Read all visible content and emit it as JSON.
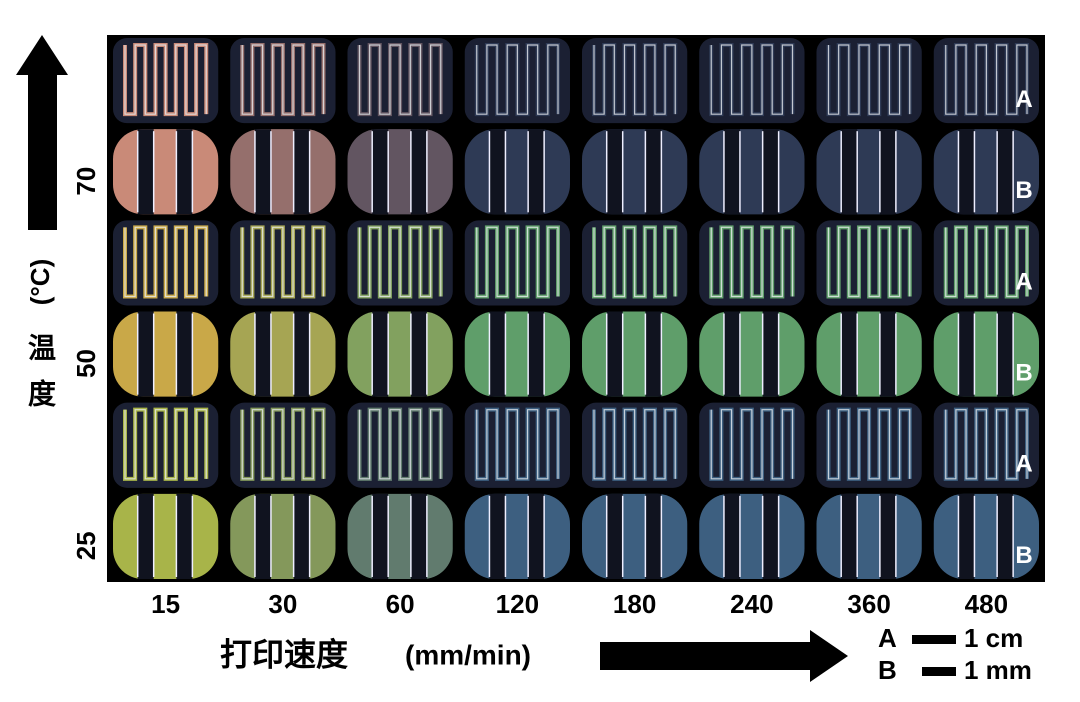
{
  "y_axis": {
    "label_chars": [
      "温",
      "度"
    ],
    "unit": "(°C)"
  },
  "rows": [
    {
      "temperature": "70",
      "patterns": [
        "A",
        "B"
      ]
    },
    {
      "temperature": "50",
      "patterns": [
        "A",
        "B"
      ]
    },
    {
      "temperature": "25",
      "patterns": [
        "A",
        "B"
      ]
    }
  ],
  "columns": [
    "15",
    "30",
    "60",
    "120",
    "180",
    "240",
    "360",
    "480"
  ],
  "x_axis": {
    "label": "打印速度",
    "unit": "(mm/min)"
  },
  "scale_bar": [
    {
      "key": "A",
      "length": "1 cm"
    },
    {
      "key": "B",
      "length": "1 mm"
    }
  ]
}
